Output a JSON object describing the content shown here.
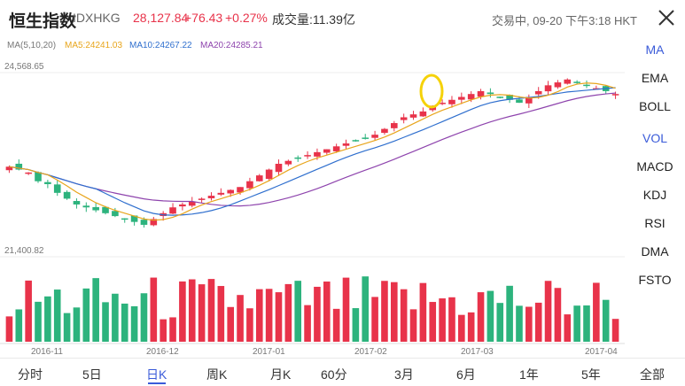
{
  "header": {
    "title": "恒生指数",
    "code": "IDXHKG",
    "price": "28,127.84",
    "change": "+76.43",
    "change_pct": "+0.27%",
    "volume": "成交量:11.39亿",
    "status": "交易中, 09-20 下午3:18 HKT",
    "close_icon": "close-icon"
  },
  "legend": {
    "params": "MA(5,10,20)",
    "ma5": "MA5:24241.03",
    "ma10": "MA10:24267.22",
    "ma20": "MA20:24285.21"
  },
  "price_labels": {
    "high": "24,568.65",
    "low": "21,400.82"
  },
  "side_menu": [
    "MA",
    "EMA",
    "BOLL",
    "VOL",
    "MACD",
    "KDJ",
    "RSI",
    "DMA",
    "FSTO"
  ],
  "x_labels": [
    "2016-11",
    "2016-12",
    "2017-01",
    "2017-02",
    "2017-03",
    "2017-04"
  ],
  "tabs": [
    "分时",
    "5日",
    "日K",
    "周K",
    "月K",
    "60分",
    "3月",
    "6月",
    "1年",
    "5年",
    "全部"
  ],
  "colors": {
    "up": "#e8334a",
    "down": "#2db37d",
    "ma5": "#e8a51c",
    "ma10": "#2f6fce",
    "ma20": "#8e44ad",
    "accent": "#3a5bd9",
    "highlight": "#f5d20a"
  },
  "chart_data": {
    "type": "candlestick",
    "x_range": [
      "2016-10",
      "2017-04"
    ],
    "y_range": [
      21400.82,
      24568.65
    ],
    "close_series_approx": [
      22950,
      22900,
      22850,
      22700,
      22650,
      22500,
      22400,
      22300,
      22250,
      22200,
      22150,
      22100,
      22050,
      22000,
      21950,
      22050,
      22150,
      22250,
      22300,
      22350,
      22400,
      22450,
      22500,
      22550,
      22600,
      22700,
      22800,
      22900,
      23000,
      23050,
      23100,
      23150,
      23200,
      23250,
      23300,
      23350,
      23400,
      23450,
      23500,
      23600,
      23700,
      23800,
      23850,
      23900,
      24000,
      24050,
      24100,
      24150,
      24200,
      24250,
      24200,
      24150,
      24100,
      24050,
      24150,
      24250,
      24350,
      24400,
      24450,
      24400,
      24350,
      24300,
      24250,
      24200
    ]
  }
}
